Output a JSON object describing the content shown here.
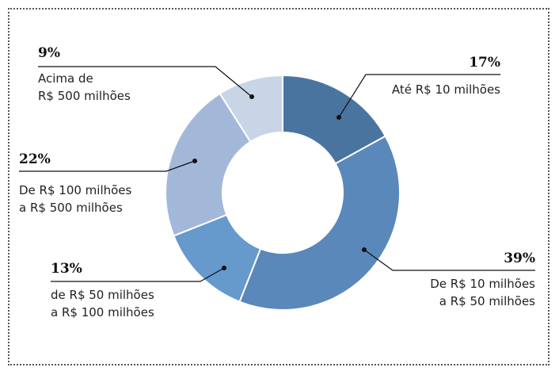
{
  "chart_data": {
    "type": "donut",
    "categories": [
      "Até R$ 10 milhões",
      "De R$ 10 milhões\na R$ 50 milhões",
      "de R$ 50 milhões\na R$ 100 milhões",
      "De R$ 100 milhões\n a R$ 500 milhões",
      "Acima de\nR$ 500 milhões"
    ],
    "values": [
      17,
      39,
      13,
      22,
      9
    ],
    "value_labels": [
      "17%",
      "39%",
      "13%",
      "22%",
      "9%"
    ],
    "colors": [
      "#4a74a0",
      "#5a88ba",
      "#6699cc",
      "#a3b8d9",
      "#c8d5e7"
    ]
  }
}
